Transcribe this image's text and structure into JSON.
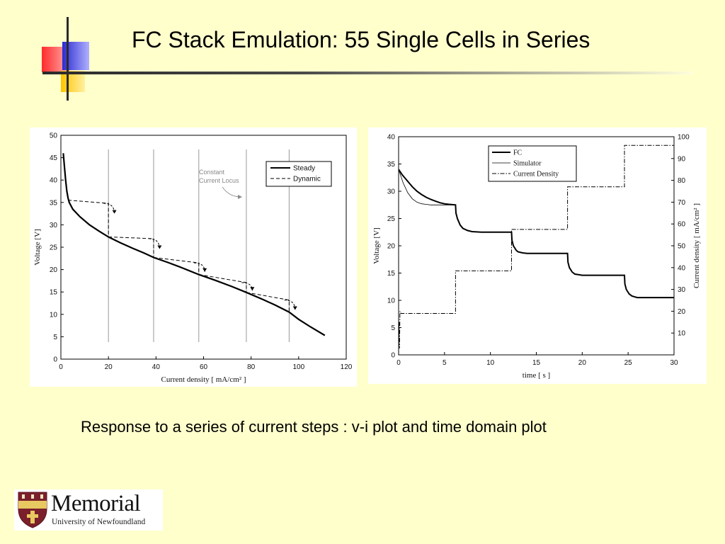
{
  "slide": {
    "title": "FC Stack Emulation: 55 Single Cells in Series",
    "caption": "Response to a series of current steps : v-i plot and time domain plot"
  },
  "logo": {
    "name": "Memorial",
    "subtitle": "University of Newfoundland"
  },
  "colors": {
    "background": "#FFFFCC",
    "deco_red": "#FF3333",
    "deco_blue": "#3333CC",
    "deco_yellow": "#FFCC00",
    "deco_line": "#2A2A2A"
  },
  "chart_data": [
    {
      "type": "line",
      "xlabel": "Current density [ mA/cm² ]",
      "ylabel": "Voltage [V]",
      "xlim": [
        0,
        120
      ],
      "ylim": [
        0,
        50
      ],
      "xticks": [
        0,
        20,
        40,
        60,
        80,
        100,
        120
      ],
      "yticks": [
        0,
        5,
        10,
        15,
        20,
        25,
        30,
        35,
        40,
        45,
        50
      ],
      "legend_position": "top-right",
      "annotation": [
        "Constant",
        "Current Locus"
      ],
      "constant_current_lines": [
        20,
        39,
        58,
        78,
        96
      ],
      "series": [
        {
          "name": "Steady",
          "style": "solid",
          "x": [
            1,
            1.5,
            2,
            2.5,
            3,
            3.5,
            5,
            8,
            12,
            16,
            20,
            25,
            30,
            35,
            39,
            45,
            50,
            58,
            65,
            72,
            78,
            85,
            90,
            96,
            100,
            105,
            111
          ],
          "y": [
            46,
            43,
            40,
            37.5,
            36,
            35,
            33.5,
            31.8,
            30,
            28.6,
            27.3,
            26,
            24.8,
            23.7,
            22.7,
            21.6,
            20.6,
            18.9,
            17.6,
            16.2,
            14.9,
            13.3,
            12.1,
            10.5,
            8.9,
            7.2,
            5.3
          ]
        },
        {
          "name": "Dynamic",
          "style": "dashed",
          "steps": [
            {
              "from_x": 3,
              "from_y": 35.5,
              "to_x": 20,
              "high_y": 34.8,
              "low_y": 27.3,
              "arrow_x": 22.5,
              "arrow_to_y": 32.5
            },
            {
              "from_x": 20,
              "from_y": 27.3,
              "to_x": 39,
              "high_y": 26.9,
              "low_y": 22.7,
              "arrow_x": 41.5,
              "arrow_to_y": 24.6
            },
            {
              "from_x": 39,
              "from_y": 22.7,
              "to_x": 58,
              "high_y": 21.5,
              "low_y": 18.9,
              "arrow_x": 60.5,
              "arrow_to_y": 19.5
            },
            {
              "from_x": 58,
              "from_y": 18.9,
              "to_x": 78,
              "high_y": 17.1,
              "low_y": 14.9,
              "arrow_x": 80.5,
              "arrow_to_y": 15.3
            },
            {
              "from_x": 78,
              "from_y": 14.9,
              "to_x": 96,
              "high_y": 13.2,
              "low_y": 10.5,
              "arrow_x": 98.5,
              "arrow_to_y": 11
            }
          ]
        }
      ]
    },
    {
      "type": "line",
      "xlabel": "time [ s ]",
      "ylabel": "Voltage [V]",
      "y2label": "Current density [ mA/cm² ]",
      "xlim": [
        0,
        30
      ],
      "ylim": [
        0,
        40
      ],
      "y2lim": [
        0,
        100
      ],
      "xticks": [
        0,
        5,
        10,
        15,
        20,
        25,
        30
      ],
      "yticks": [
        0,
        5,
        10,
        15,
        20,
        25,
        30,
        35,
        40
      ],
      "y2ticks": [
        10,
        20,
        30,
        40,
        50,
        60,
        70,
        80,
        90,
        100
      ],
      "legend_position": "top-left",
      "series": [
        {
          "name": "FC",
          "style": "solid-thick",
          "axis": "left",
          "x": [
            0,
            0.4,
            1,
            1.5,
            2,
            2.5,
            3,
            3.5,
            4,
            4.5,
            5,
            5.5,
            6.2,
            6.25,
            6.4,
            6.7,
            7,
            7.5,
            8,
            9,
            10,
            11,
            12.3,
            12.35,
            12.5,
            12.8,
            13,
            13.5,
            14,
            15,
            16,
            17,
            18.4,
            18.45,
            18.6,
            18.9,
            19.2,
            19.6,
            20,
            21,
            22,
            23,
            24.6,
            24.65,
            24.8,
            25.1,
            25.4,
            25.8,
            26,
            27,
            28,
            29,
            30
          ],
          "y": [
            34,
            33,
            31.8,
            30.8,
            30,
            29.4,
            28.9,
            28.5,
            28.2,
            27.9,
            27.7,
            27.6,
            27.5,
            26,
            25,
            23.8,
            23.2,
            22.8,
            22.6,
            22.5,
            22.5,
            22.5,
            22.5,
            21,
            20,
            19.2,
            18.9,
            18.7,
            18.6,
            18.6,
            18.6,
            18.6,
            18.6,
            17,
            16,
            15.2,
            14.8,
            14.7,
            14.6,
            14.6,
            14.6,
            14.6,
            14.6,
            13,
            12,
            11.2,
            10.8,
            10.6,
            10.5,
            10.5,
            10.5,
            10.5,
            10.5
          ]
        },
        {
          "name": "Simulator",
          "style": "solid-thin",
          "axis": "left",
          "x": [
            0,
            0.5,
            1,
            1.5,
            2,
            2.5,
            3,
            3.5,
            4,
            6.2
          ],
          "y": [
            34,
            31.5,
            29.7,
            28.6,
            28,
            27.7,
            27.6,
            27.5,
            27.5,
            27.5
          ]
        },
        {
          "name": "Current Density",
          "style": "dash-dot",
          "axis": "right",
          "x": [
            0,
            0.05,
            0.1,
            0.15,
            0.25,
            6.2,
            6.2,
            12.3,
            12.3,
            18.4,
            18.4,
            24.6,
            24.6,
            30
          ],
          "y": [
            0,
            15,
            3,
            20,
            19,
            19,
            38.5,
            38.5,
            57.5,
            57.5,
            77,
            77,
            96,
            96
          ]
        }
      ]
    }
  ]
}
